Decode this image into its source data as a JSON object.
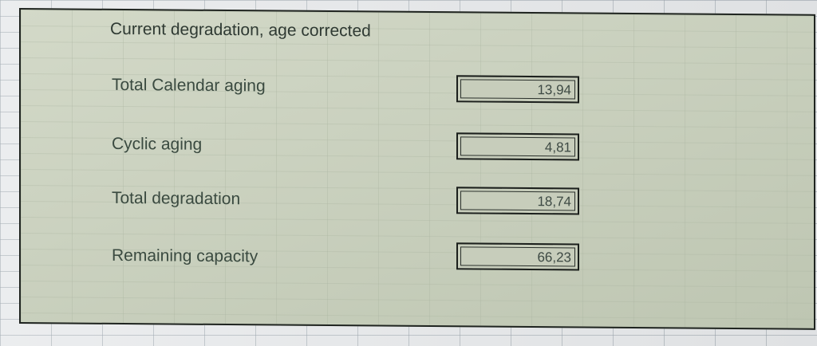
{
  "panel": {
    "title": "Current degradation, age corrected",
    "rows": [
      {
        "label": "Total Calendar aging",
        "value": "13,94"
      },
      {
        "label": "Cyclic aging",
        "value": "4,81"
      },
      {
        "label": "Total degradation",
        "value": "18,74"
      },
      {
        "label": "Remaining capacity",
        "value": "66,23"
      }
    ]
  },
  "colors": {
    "panel_fill": "#c8cfbd",
    "sheet_background": "#e8eaec",
    "border": "#1f2420",
    "text": "#3a4a40"
  }
}
